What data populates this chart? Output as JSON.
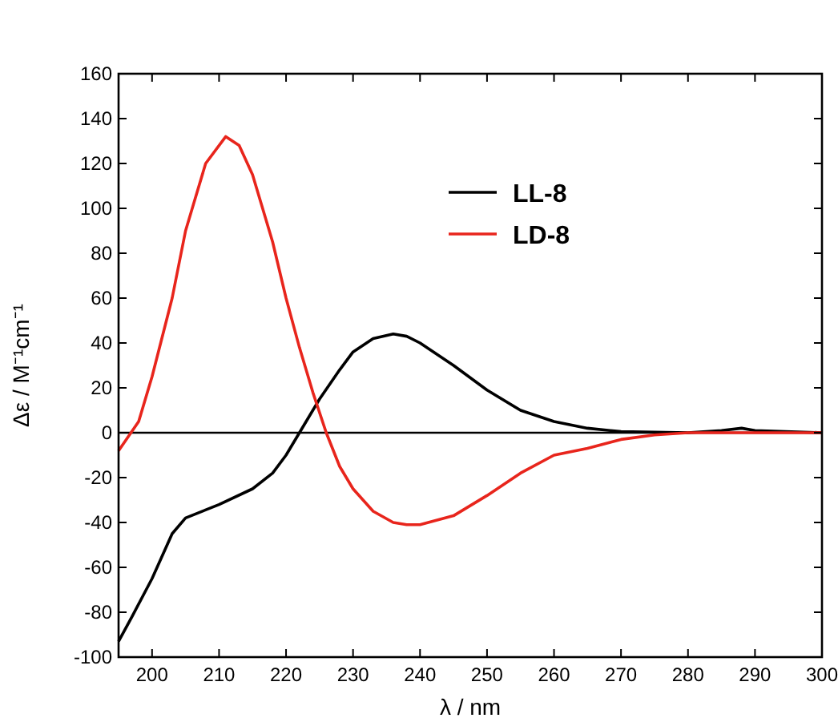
{
  "chart_data": {
    "type": "line",
    "xlabel": "λ / nm",
    "ylabel": "Δε / M⁻¹cm⁻¹",
    "xlim": [
      195,
      300
    ],
    "xticks": [
      200,
      210,
      220,
      230,
      240,
      250,
      260,
      270,
      280,
      290,
      300
    ],
    "ylim": [
      -100,
      160
    ],
    "yticks": [
      -100,
      -80,
      -60,
      -40,
      -20,
      0,
      20,
      40,
      60,
      80,
      100,
      120,
      140,
      160
    ],
    "grid": false,
    "legend": "top right",
    "line_style": "solid",
    "ref_lines": [
      {
        "axis": "y",
        "value": 0,
        "color": "#000000"
      }
    ],
    "series": [
      {
        "name": "LL-8",
        "color": "#000000",
        "x": [
          195,
          197,
          200,
          203,
          205,
          210,
          215,
          218,
          220,
          223,
          225,
          228,
          230,
          233,
          236,
          238,
          240,
          245,
          250,
          255,
          260,
          265,
          270,
          280,
          285,
          288,
          290,
          300
        ],
        "values": [
          -93,
          -82,
          -65,
          -45,
          -38,
          -32,
          -25,
          -18,
          -10,
          5,
          15,
          28,
          36,
          42,
          44,
          43,
          40,
          30,
          19,
          10,
          5,
          2,
          0.5,
          0,
          1,
          2,
          1,
          0
        ]
      },
      {
        "name": "LD-8",
        "color": "#e8251c",
        "x": [
          195,
          198,
          200,
          203,
          205,
          208,
          211,
          213,
          215,
          218,
          220,
          222,
          224,
          226,
          228,
          230,
          233,
          236,
          238,
          240,
          245,
          250,
          255,
          260,
          265,
          270,
          275,
          280,
          300
        ],
        "values": [
          -8,
          5,
          25,
          60,
          90,
          120,
          132,
          128,
          115,
          85,
          60,
          38,
          18,
          0,
          -15,
          -25,
          -35,
          -40,
          -41,
          -41,
          -37,
          -28,
          -18,
          -10,
          -7,
          -3,
          -1,
          0,
          0
        ]
      }
    ]
  }
}
